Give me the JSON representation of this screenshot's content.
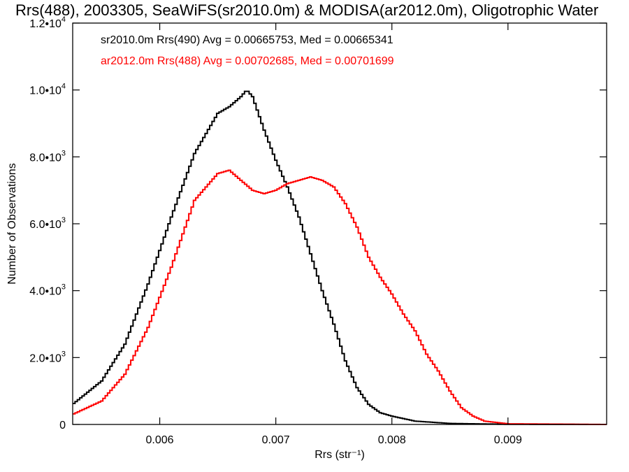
{
  "chart_data": {
    "type": "histogram",
    "title": "Rrs(488), 2003305, SeaWiFS(sr2010.0m) & MODISA(ar2012.0m), Oligotrophic Water",
    "xlabel": "Rrs (str⁻¹)",
    "ylabel": "Number of Observations",
    "xlim": [
      0.00525,
      0.00985
    ],
    "ylim": [
      0,
      12000
    ],
    "x_ticks": [
      {
        "value": 0.006,
        "label": "0.006"
      },
      {
        "value": 0.007,
        "label": "0.007"
      },
      {
        "value": 0.008,
        "label": "0.008"
      },
      {
        "value": 0.009,
        "label": "0.009"
      }
    ],
    "y_ticks": [
      {
        "value": 0,
        "mant": "0",
        "exp": ""
      },
      {
        "value": 2000,
        "mant": "2.0•10",
        "exp": "3"
      },
      {
        "value": 4000,
        "mant": "4.0•10",
        "exp": "3"
      },
      {
        "value": 6000,
        "mant": "6.0•10",
        "exp": "3"
      },
      {
        "value": 8000,
        "mant": "8.0•10",
        "exp": "3"
      },
      {
        "value": 10000,
        "mant": "1.0•10",
        "exp": "4"
      },
      {
        "value": 12000,
        "mant": "1.2•10",
        "exp": "4"
      }
    ],
    "grid": false,
    "legend_position": "top-left",
    "legend": [
      {
        "text": "sr2010.0m Rrs(490) Avg = 0.00665753, Med = 0.00665341",
        "color": "#000000"
      },
      {
        "text": "ar2012.0m Rrs(488) Avg = 0.00702685, Med = 0.00701699",
        "color": "#ff0000"
      }
    ],
    "series": [
      {
        "color": "#000000",
        "points": [
          [
            0.00525,
            600
          ],
          [
            0.0055,
            1300
          ],
          [
            0.0057,
            2400
          ],
          [
            0.0059,
            4200
          ],
          [
            0.0061,
            6200
          ],
          [
            0.0063,
            8100
          ],
          [
            0.0065,
            9300
          ],
          [
            0.0066,
            9500
          ],
          [
            0.0067,
            9800
          ],
          [
            0.00675,
            10000
          ],
          [
            0.0068,
            9800
          ],
          [
            0.0069,
            8800
          ],
          [
            0.007,
            7900
          ],
          [
            0.0071,
            7100
          ],
          [
            0.0072,
            6200
          ],
          [
            0.0073,
            5100
          ],
          [
            0.0074,
            4000
          ],
          [
            0.0075,
            3000
          ],
          [
            0.0076,
            1900
          ],
          [
            0.0077,
            1100
          ],
          [
            0.0078,
            600
          ],
          [
            0.0079,
            350
          ],
          [
            0.008,
            250
          ],
          [
            0.0082,
            100
          ],
          [
            0.0085,
            30
          ],
          [
            0.009,
            5
          ],
          [
            0.00985,
            0
          ]
        ]
      },
      {
        "color": "#ff0000",
        "points": [
          [
            0.00525,
            300
          ],
          [
            0.0055,
            700
          ],
          [
            0.0057,
            1500
          ],
          [
            0.0059,
            2900
          ],
          [
            0.0061,
            4700
          ],
          [
            0.0063,
            6700
          ],
          [
            0.0065,
            7500
          ],
          [
            0.0066,
            7600
          ],
          [
            0.0067,
            7300
          ],
          [
            0.0068,
            7000
          ],
          [
            0.0069,
            6900
          ],
          [
            0.007,
            7000
          ],
          [
            0.0071,
            7200
          ],
          [
            0.0072,
            7300
          ],
          [
            0.0073,
            7400
          ],
          [
            0.0074,
            7300
          ],
          [
            0.0075,
            7100
          ],
          [
            0.0076,
            6600
          ],
          [
            0.0077,
            5900
          ],
          [
            0.0078,
            5000
          ],
          [
            0.0079,
            4400
          ],
          [
            0.008,
            3900
          ],
          [
            0.0081,
            3300
          ],
          [
            0.0082,
            2800
          ],
          [
            0.0083,
            2100
          ],
          [
            0.0084,
            1600
          ],
          [
            0.0085,
            1000
          ],
          [
            0.0086,
            500
          ],
          [
            0.0087,
            250
          ],
          [
            0.0088,
            100
          ],
          [
            0.009,
            20
          ],
          [
            0.00985,
            0
          ]
        ]
      }
    ]
  }
}
